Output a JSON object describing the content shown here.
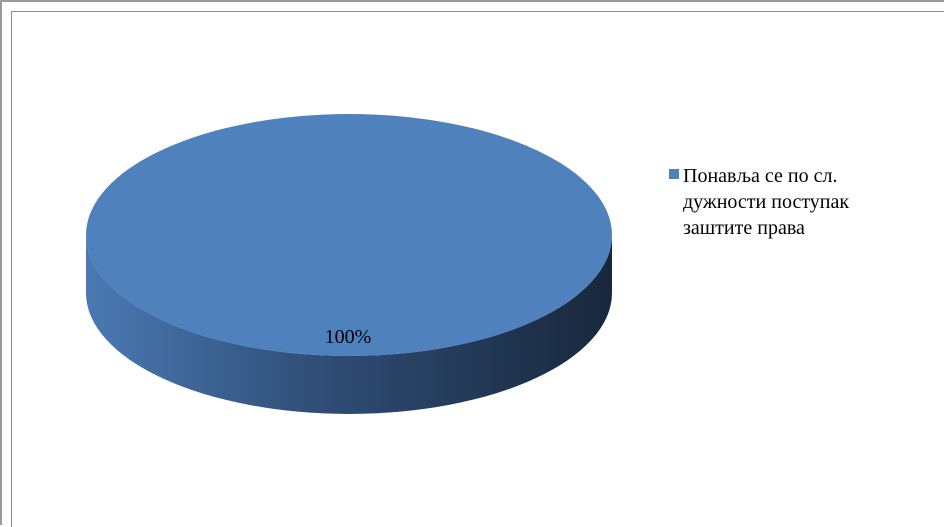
{
  "chart_data": {
    "type": "pie",
    "title": "",
    "slices": [
      {
        "label": "Понавља се по сл. дужности поступак заштите права",
        "value": 100,
        "data_label": "100%",
        "color": "#4f81bd"
      }
    ],
    "legend": {
      "position": "right",
      "entries": [
        "Понавља се по сл. дужности поступак заштите права"
      ]
    },
    "style": "3d"
  },
  "colors": {
    "top": "#4f81bd",
    "side_light": "#4a79b3",
    "side_dark": "#1a2a40"
  }
}
